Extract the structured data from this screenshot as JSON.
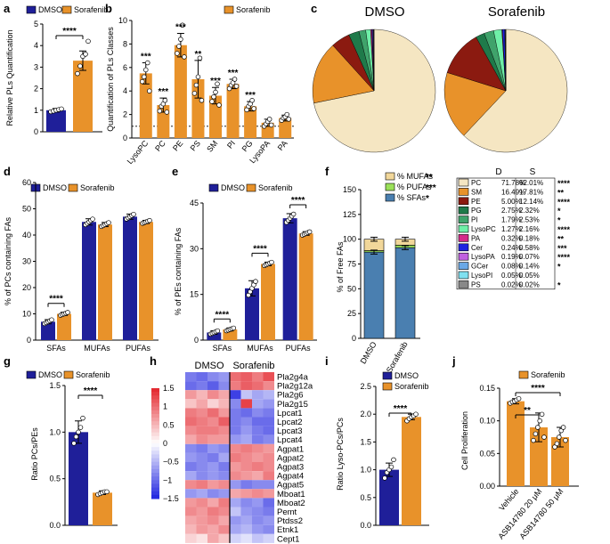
{
  "colors": {
    "dmso": "#1f1f99",
    "sorafenib": "#e8922a",
    "mufa": "#f1d79a",
    "pufa": "#9be15a",
    "sfa": "#4a7fb0",
    "heat_hi": "#e3242b",
    "heat_lo": "#1f23e0"
  },
  "legend": {
    "dmso": "DMSO",
    "sorafenib": "Sorafenib"
  },
  "chart_data": [
    {
      "panel": "a",
      "type": "bar",
      "ylabel": "Relative PLs Quantification",
      "ylim": [
        0,
        5
      ],
      "yticks": [
        "0",
        "1",
        "2",
        "3",
        "4",
        "5"
      ],
      "categories": [
        "DMSO",
        "Sorafenib"
      ],
      "values": [
        1.0,
        3.3
      ],
      "errors": [
        0.08,
        0.45
      ],
      "points": [
        [
          0.93,
          0.96,
          1.0,
          1.03,
          1.06
        ],
        [
          2.7,
          3.05,
          3.5,
          3.6,
          4.2
        ]
      ],
      "significance": "****"
    },
    {
      "panel": "b",
      "type": "bar",
      "ylabel": "Quantification of PLs Classes",
      "ylim": [
        0,
        10
      ],
      "yticks": [
        "0",
        "2",
        "4",
        "6",
        "8",
        "10"
      ],
      "baseline": 1,
      "categories": [
        "LysoPC",
        "PC",
        "PE",
        "PS",
        "SM",
        "PI",
        "PG",
        "LysoPA",
        "PA"
      ],
      "values": [
        5.5,
        2.8,
        7.9,
        5.0,
        3.6,
        4.6,
        2.7,
        1.3,
        1.7
      ],
      "errors": [
        0.9,
        0.6,
        1.0,
        1.6,
        0.7,
        0.4,
        0.4,
        0.3,
        0.25
      ],
      "points": [
        [
          4.8,
          5.2,
          5.8,
          6.4,
          4.0
        ],
        [
          2.3,
          2.7,
          2.9,
          3.2,
          2.2
        ],
        [
          7.2,
          7.8,
          8.4,
          9.6,
          6.9
        ],
        [
          3.8,
          4.5,
          5.2,
          6.8,
          3.2
        ],
        [
          3.1,
          3.5,
          3.9,
          4.6,
          2.8
        ],
        [
          4.2,
          4.5,
          4.7,
          5.0,
          4.4
        ],
        [
          2.4,
          2.7,
          2.9,
          3.2,
          2.5
        ],
        [
          1.0,
          1.2,
          1.4,
          1.6,
          1.1
        ],
        [
          1.5,
          1.7,
          1.8,
          2.0,
          1.6
        ]
      ],
      "significance": [
        "***",
        "***",
        "***",
        "**",
        "***",
        "***",
        "***",
        "",
        ""
      ],
      "legend": "Sorafenib"
    },
    {
      "panel": "c",
      "type": "pie",
      "titles": [
        "DMSO",
        "Sorafenib"
      ],
      "labels": [
        "PC",
        "SM",
        "PE",
        "PG",
        "PI",
        "LysoPC",
        "PA",
        "Cer",
        "LysoPA",
        "GCer",
        "LysoPI",
        "PS"
      ],
      "colors": [
        "#f5e6c2",
        "#e8922a",
        "#8b1a10",
        "#1f7a4a",
        "#3fa36b",
        "#6ff0a8",
        "#d52a8a",
        "#1f23e0",
        "#c060e0",
        "#6aa8e6",
        "#7fe0f0",
        "#888888"
      ],
      "series": [
        {
          "name": "D",
          "values": [
            71.78,
            16.49,
            5.0,
            2.75,
            1.79,
            1.27,
            0.32,
            0.24,
            0.19,
            0.08,
            0.05,
            0.02
          ]
        },
        {
          "name": "S",
          "values": [
            62.01,
            17.81,
            12.14,
            2.32,
            2.53,
            2.16,
            0.18,
            0.58,
            0.07,
            0.14,
            0.05,
            0.02
          ]
        }
      ],
      "table": {
        "header": [
          "D",
          "S"
        ],
        "rows": [
          [
            "PC",
            "71.78%",
            "62.01%",
            "****"
          ],
          [
            "SM",
            "16.49%",
            "17.81%",
            "**"
          ],
          [
            "PE",
            "5.00%",
            "12.14%",
            "****"
          ],
          [
            "PG",
            "2.75%",
            "2.32%",
            "*"
          ],
          [
            "PI",
            "1.79%",
            "2.53%",
            "*"
          ],
          [
            "LysoPC",
            "1.27%",
            "2.16%",
            "****"
          ],
          [
            "PA",
            "0.32%",
            "0.18%",
            "**"
          ],
          [
            "Cer",
            "0.24%",
            "0.58%",
            "***"
          ],
          [
            "LysoPA",
            "0.19%",
            "0.07%",
            "****"
          ],
          [
            "GCer",
            "0.08%",
            "0.14%",
            "*"
          ],
          [
            "LysoPI",
            "0.05%",
            "0.05%",
            ""
          ],
          [
            "PS",
            "0.02%",
            "0.02%",
            "*"
          ]
        ]
      }
    },
    {
      "panel": "d",
      "type": "bar",
      "ylabel": "% of PCs containing FAs",
      "ylim": [
        0,
        60
      ],
      "yticks": [
        "0",
        "10",
        "20",
        "30",
        "40",
        "50",
        "60"
      ],
      "categories": [
        "SFAs",
        "MUFAs",
        "PUFAs"
      ],
      "series": [
        {
          "name": "DMSO",
          "values": [
            7,
            45,
            47
          ],
          "errors": [
            0.8,
            1.2,
            1.0
          ]
        },
        {
          "name": "Sorafenib",
          "values": [
            10,
            44,
            45
          ],
          "errors": [
            0.6,
            0.8,
            0.6
          ]
        }
      ],
      "significance": [
        "****",
        "",
        ""
      ]
    },
    {
      "panel": "e",
      "type": "bar",
      "ylabel": "% of PEs containing FAs",
      "ylim": [
        0,
        45
      ],
      "yticks": [
        "0",
        "15",
        "30",
        "45"
      ],
      "categories": [
        "SFAs",
        "MUFAs",
        "PUFAs"
      ],
      "series": [
        {
          "name": "DMSO",
          "values": [
            2.5,
            17,
            40
          ],
          "errors": [
            0.6,
            2.5,
            1.5
          ]
        },
        {
          "name": "Sorafenib",
          "values": [
            3.5,
            25,
            35
          ],
          "errors": [
            0.5,
            0.6,
            0.6
          ]
        }
      ],
      "significance": [
        "****",
        "****",
        "****"
      ]
    },
    {
      "panel": "f",
      "type": "stacked-bar",
      "ylabel": "% of Free FAs",
      "ylim": [
        0,
        150
      ],
      "yticks": [
        "0",
        "25",
        "50",
        "75",
        "100",
        "125",
        "150"
      ],
      "categories": [
        "DMSO",
        "Sorafenib"
      ],
      "series": [
        {
          "name": "% SFAs",
          "values": [
            87,
            91.5
          ],
          "sig": "*"
        },
        {
          "name": "% PUFAs",
          "values": [
            1.5,
            2.5
          ],
          "sig": "***"
        },
        {
          "name": "% MUFAs",
          "values": [
            11.5,
            6
          ],
          "sig": "**"
        }
      ]
    },
    {
      "panel": "g",
      "type": "bar",
      "ylabel": "Ratio PCs/PEs",
      "ylim": [
        0,
        1.5
      ],
      "yticks": [
        "0.0",
        "0.5",
        "1.0",
        "1.5"
      ],
      "categories": [
        "DMSO",
        "Sorafenib"
      ],
      "values": [
        1.0,
        0.35
      ],
      "errors": [
        0.12,
        0.02
      ],
      "points": [
        [
          0.88,
          0.95,
          1.0,
          1.05,
          1.15
        ],
        [
          0.33,
          0.34,
          0.35,
          0.36,
          0.36
        ]
      ],
      "significance": "****"
    },
    {
      "panel": "h",
      "type": "heatmap",
      "groups": [
        "DMSO",
        "Sorafenib"
      ],
      "rows": [
        "Pla2g4a",
        "Pla2g12a",
        "Pla2g6",
        "Pla2g15",
        "Lpcat1",
        "Lpcat2",
        "Lpcat3",
        "Lpcat4",
        "Agpat1",
        "Agpat2",
        "Agpat3",
        "Agpat4",
        "Agpat5",
        "Mboat1",
        "Mboat2",
        "Pemt",
        "Ptdss2",
        "Etnk1",
        "Cept1"
      ],
      "colorbar_ticks": [
        "1.5",
        "1",
        "0.5",
        "0",
        "−0.5",
        "−1",
        "−1.5"
      ],
      "vmin": -1.5,
      "vmax": 1.5,
      "matrix": [
        [
          -0.9,
          -1.0,
          -0.8,
          -0.7,
          1.0,
          1.1,
          0.9,
          1.2
        ],
        [
          -1.0,
          -0.9,
          -1.1,
          -0.8,
          0.9,
          1.1,
          1.0,
          0.8
        ],
        [
          0.7,
          0.5,
          0.8,
          0.6,
          -1.3,
          -0.4,
          -0.6,
          -0.5
        ],
        [
          0.4,
          0.6,
          0.3,
          0.5,
          -0.8,
          1.3,
          -0.6,
          -0.7
        ],
        [
          0.9,
          0.8,
          1.0,
          0.7,
          -0.9,
          -1.0,
          -0.8,
          -0.9
        ],
        [
          1.0,
          0.9,
          0.8,
          1.1,
          -0.9,
          -0.8,
          -1.0,
          -1.0
        ],
        [
          0.8,
          0.9,
          0.9,
          0.8,
          -0.9,
          -0.7,
          -0.9,
          -1.0
        ],
        [
          0.6,
          0.8,
          0.7,
          0.7,
          -0.7,
          -0.6,
          -0.9,
          -0.8
        ],
        [
          -0.8,
          -0.9,
          -0.7,
          -0.8,
          0.8,
          0.9,
          0.8,
          0.7
        ],
        [
          -0.7,
          -0.8,
          -0.9,
          -0.6,
          0.9,
          0.8,
          0.7,
          0.8
        ],
        [
          -0.9,
          -0.8,
          -0.7,
          -0.9,
          0.7,
          0.8,
          0.9,
          0.8
        ],
        [
          -0.6,
          -0.8,
          -0.7,
          -0.8,
          0.8,
          0.7,
          0.6,
          0.9
        ],
        [
          0.8,
          0.9,
          0.7,
          0.8,
          -0.7,
          -0.9,
          -0.8,
          -0.8
        ],
        [
          -0.7,
          -0.6,
          -0.8,
          -0.7,
          0.6,
          0.7,
          0.8,
          0.7
        ],
        [
          0.7,
          0.8,
          0.6,
          0.9,
          -0.6,
          -0.8,
          -0.7,
          -1.0
        ],
        [
          0.8,
          0.7,
          0.9,
          0.8,
          -0.4,
          -0.7,
          -0.8,
          -0.9
        ],
        [
          0.6,
          0.7,
          0.8,
          0.6,
          -0.7,
          -0.6,
          -0.8,
          -0.7
        ],
        [
          0.5,
          0.7,
          0.6,
          0.8,
          -0.6,
          -0.5,
          -0.7,
          -0.8
        ],
        [
          0.3,
          0.2,
          0.6,
          0.4,
          -0.3,
          -0.2,
          -0.4,
          -0.3
        ]
      ]
    },
    {
      "panel": "i",
      "type": "bar",
      "ylabel": "Ratio Lyso-PCs/PCs",
      "ylim": [
        0,
        2.5
      ],
      "yticks": [
        "0.0",
        "0.5",
        "1.0",
        "1.5",
        "2.0",
        "2.5"
      ],
      "categories": [
        "DMSO",
        "Sorafenib"
      ],
      "values": [
        1.0,
        1.95
      ],
      "errors": [
        0.12,
        0.05
      ],
      "points": [
        [
          0.85,
          0.95,
          1.0,
          1.05,
          1.18
        ],
        [
          1.88,
          1.92,
          1.95,
          1.97,
          2.0
        ]
      ],
      "significance": "****"
    },
    {
      "panel": "j",
      "type": "bar",
      "ylabel": "Cell Proliferation",
      "ylim": [
        0,
        0.15
      ],
      "yticks": [
        "0.00",
        "0.05",
        "0.10",
        "0.15"
      ],
      "categories": [
        "Vehicle",
        "ASB14780 20 μM",
        "ASB14780 50 μM"
      ],
      "values": [
        0.13,
        0.09,
        0.075
      ],
      "errors": [
        0.004,
        0.022,
        0.015
      ],
      "points": [
        [
          0.127,
          0.129,
          0.13,
          0.132,
          0.134
        ],
        [
          0.07,
          0.08,
          0.09,
          0.1,
          0.11,
          0.075
        ],
        [
          0.06,
          0.065,
          0.075,
          0.085,
          0.09,
          0.07
        ]
      ],
      "significance": [
        "**",
        "****"
      ],
      "legend": "Sorafenib"
    }
  ]
}
